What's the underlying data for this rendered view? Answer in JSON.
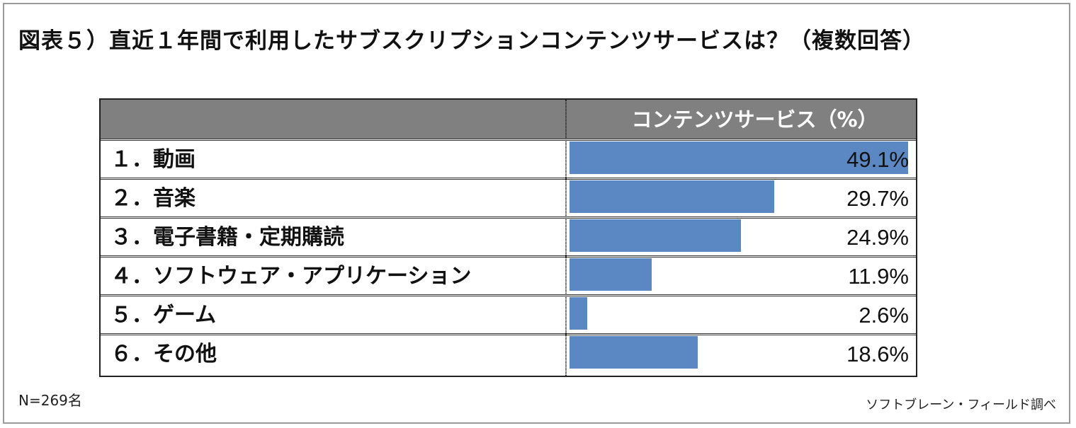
{
  "title": "図表５）直近１年間で利用したサブスクリプションコンテンツサービスは？（複数回答）",
  "note": "N=269名",
  "source": "ソフトブレーン・フィールド調べ",
  "colors": {
    "header_bg": "#808080",
    "bar": "#5b87c2"
  },
  "chart_data": {
    "type": "bar",
    "orientation": "horizontal",
    "title": "図表５）直近１年間で利用したサブスクリプションコンテンツサービスは？（複数回答）",
    "column_header": "コンテンツサービス（%）",
    "categories": [
      "１．動画",
      "２．音楽",
      "３．電子書籍・定期購読",
      "４．ソフトウェア・アプリケーション",
      "５．ゲーム",
      "６．その他"
    ],
    "values": [
      49.1,
      29.7,
      24.9,
      11.9,
      2.6,
      18.6
    ],
    "value_labels": [
      "49.1%",
      "29.7%",
      "24.9%",
      "11.9%",
      "2.6%",
      "18.6%"
    ],
    "unit": "%",
    "xlim": [
      0,
      49.1
    ],
    "grid": false,
    "legend": "none"
  }
}
